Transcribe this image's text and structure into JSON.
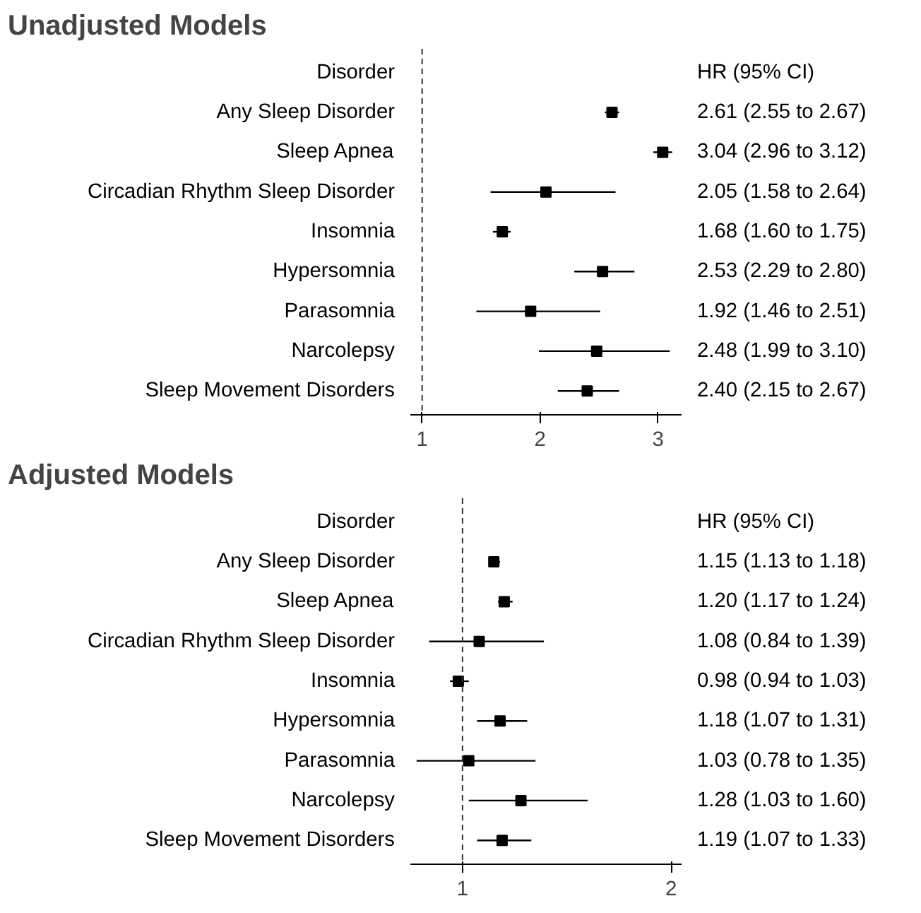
{
  "chart_data": [
    {
      "type": "scatter",
      "orientation": "horizontal",
      "title": "Unadjusted Models",
      "annotations": [
        "Disorder",
        "HR (95% CI)"
      ],
      "marker": "square",
      "color": "#000000",
      "categories": [
        "Any Sleep Disorder",
        "Sleep Apnea",
        "Circadian Rhythm Sleep Disorder",
        "Insomnia",
        "Hypersomnia",
        "Parasomnia",
        "Narcolepsy",
        "Sleep Movement Disorders"
      ],
      "values": [
        2.61,
        3.04,
        2.05,
        1.68,
        2.53,
        1.92,
        2.48,
        2.4
      ],
      "errors": [
        [
          2.55,
          2.67
        ],
        [
          2.96,
          3.12
        ],
        [
          1.58,
          2.64
        ],
        [
          1.6,
          1.75
        ],
        [
          2.29,
          2.8
        ],
        [
          1.46,
          2.51
        ],
        [
          1.99,
          3.1
        ],
        [
          2.15,
          2.67
        ]
      ],
      "value_labels": [
        "2.61 (2.55 to 2.67)",
        "3.04 (2.96 to 3.12)",
        "2.05 (1.58 to 2.64)",
        "1.68 (1.60 to 1.75)",
        "2.53 (2.29 to 2.80)",
        "1.92 (1.46 to 2.51)",
        "2.48 (1.99 to 3.10)",
        "2.40 (2.15 to 2.67)"
      ],
      "xlim": [
        0.9,
        3.2
      ],
      "xticks": [
        1,
        2,
        3
      ],
      "ref_lines": [
        {
          "axis": "x",
          "value": 1,
          "line_style": "dashed",
          "color": "#333333"
        }
      ]
    },
    {
      "type": "scatter",
      "orientation": "horizontal",
      "title": "Adjusted Models",
      "annotations": [
        "Disorder",
        "HR (95% CI)"
      ],
      "marker": "square",
      "color": "#000000",
      "categories": [
        "Any Sleep Disorder",
        "Sleep Apnea",
        "Circadian Rhythm Sleep Disorder",
        "Insomnia",
        "Hypersomnia",
        "Parasomnia",
        "Narcolepsy",
        "Sleep Movement Disorders"
      ],
      "values": [
        1.15,
        1.2,
        1.08,
        0.98,
        1.18,
        1.03,
        1.28,
        1.19
      ],
      "errors": [
        [
          1.13,
          1.18
        ],
        [
          1.17,
          1.24
        ],
        [
          0.84,
          1.39
        ],
        [
          0.94,
          1.03
        ],
        [
          1.07,
          1.31
        ],
        [
          0.78,
          1.35
        ],
        [
          1.03,
          1.6
        ],
        [
          1.07,
          1.33
        ]
      ],
      "value_labels": [
        "1.15 (1.13 to 1.18)",
        "1.20 (1.17 to 1.24)",
        "1.08 (0.84 to 1.39)",
        "0.98 (0.94 to 1.03)",
        "1.18 (1.07 to 1.31)",
        "1.03 (0.78 to 1.35)",
        "1.28 (1.03 to 1.60)",
        "1.19 (1.07 to 1.33)"
      ],
      "xlim": [
        0.75,
        2.05
      ],
      "xticks": [
        1,
        2
      ],
      "ref_lines": [
        {
          "axis": "x",
          "value": 1,
          "line_style": "dashed",
          "color": "#333333"
        }
      ]
    }
  ]
}
